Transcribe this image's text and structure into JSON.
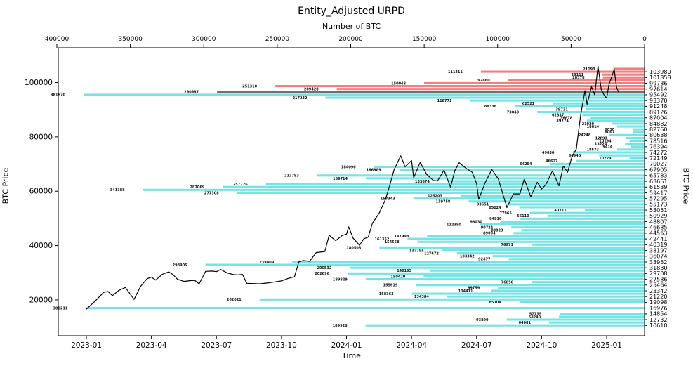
{
  "chart_data": {
    "type": "bar",
    "orientation": "horizontal",
    "title": "Entity_Adjusted URPD",
    "top_axis_label": "Number of BTC",
    "xlabel": "Time",
    "ylabel_left": "BTC Price",
    "ylabel_right": "BTC Price",
    "grid": false,
    "legend": "none",
    "colors": {
      "in_loss": "#f08080",
      "current": "#707070",
      "in_profit": "#76e4e4",
      "line": "#000000",
      "background": "#ffffff"
    },
    "top_axis": {
      "ticks": [
        400000,
        350000,
        300000,
        250000,
        200000,
        150000,
        100000,
        50000,
        0
      ],
      "max": 400000,
      "reversed": true
    },
    "left_axis": {
      "ticks": [
        20000,
        40000,
        60000,
        80000,
        100000
      ],
      "min": 6800,
      "max": 112800
    },
    "bottom_axis": {
      "tick_labels": [
        "2023-01",
        "2023-04",
        "2023-07",
        "2023-10",
        "2024-01",
        "2024-04",
        "2024-07",
        "2024-10",
        "2025-01"
      ],
      "tick_months": [
        0,
        3,
        6,
        9,
        12,
        15,
        18,
        21,
        24
      ]
    },
    "right_axis_tick_prices": [
      103980,
      101858,
      99736,
      97614,
      95492,
      93370,
      91248,
      89126,
      87004,
      84882,
      82760,
      80638,
      78516,
      76394,
      74272,
      72149,
      70027,
      67905,
      65783,
      63661,
      61539,
      59417,
      57295,
      55173,
      53051,
      50929,
      48807,
      46685,
      44563,
      42441,
      40319,
      38197,
      36074,
      33952,
      31830,
      29708,
      27586,
      25464,
      23342,
      21220,
      19098,
      16976,
      14854,
      12732,
      10610
    ],
    "bars": [
      {
        "price": 105041,
        "btc": 21193,
        "status": "in_loss"
      },
      {
        "price": 103980,
        "btc": 111411,
        "status": "in_loss"
      },
      {
        "price": 102919,
        "btc": 29111,
        "status": "in_loss"
      },
      {
        "price": 101858,
        "btc": 28378,
        "status": "in_loss"
      },
      {
        "price": 100797,
        "btc": 92860,
        "status": "in_loss"
      },
      {
        "price": 99736,
        "btc": 150048,
        "status": "in_loss"
      },
      {
        "price": 98675,
        "btc": 251310,
        "status": "in_loss"
      },
      {
        "price": 97614,
        "btc": 209428,
        "status": "in_loss"
      },
      {
        "price": 96553,
        "btc": 290987,
        "status": "current"
      },
      {
        "price": 95492,
        "btc": 381870,
        "status": "in_profit"
      },
      {
        "price": 94431,
        "btc": 217232,
        "status": "in_profit"
      },
      {
        "price": 93370,
        "btc": 118771,
        "status": "in_profit"
      },
      {
        "price": 92309,
        "btc": 62521,
        "status": "in_profit"
      },
      {
        "price": 91248,
        "btc": 88338,
        "status": "in_profit"
      },
      {
        "price": 90187,
        "btc": 39731,
        "status": "in_profit"
      },
      {
        "price": 89126,
        "btc": 73040,
        "status": "in_profit"
      },
      {
        "price": 88065,
        "btc": 42337,
        "status": "in_profit"
      },
      {
        "price": 87004,
        "btc": 36678,
        "status": "in_profit"
      },
      {
        "price": 85943,
        "btc": 39274,
        "status": "in_profit"
      },
      {
        "price": 84882,
        "btc": 21929,
        "status": "in_profit"
      },
      {
        "price": 83821,
        "btc": 18614,
        "status": "in_profit"
      },
      {
        "price": 82760,
        "btc": 8030,
        "status": "in_profit"
      },
      {
        "price": 81699,
        "btc": 8067,
        "status": "in_profit"
      },
      {
        "price": 80638,
        "btc": 24248,
        "status": "in_profit"
      },
      {
        "price": 79577,
        "btc": 12891,
        "status": "in_profit"
      },
      {
        "price": 78516,
        "btc": 10194,
        "status": "in_profit"
      },
      {
        "price": 77455,
        "btc": 13224,
        "status": "in_profit"
      },
      {
        "price": 76394,
        "btc": 9414,
        "status": "in_profit"
      },
      {
        "price": 75333,
        "btc": 18673,
        "status": "in_profit"
      },
      {
        "price": 74272,
        "btc": 49030,
        "status": "in_profit"
      },
      {
        "price": 73211,
        "btc": 30948,
        "status": "in_profit"
      },
      {
        "price": 72149,
        "btc": 10229,
        "status": "in_profit"
      },
      {
        "price": 71088,
        "btc": 46627,
        "status": "in_profit"
      },
      {
        "price": 70027,
        "btc": 64254,
        "status": "in_profit"
      },
      {
        "price": 68966,
        "btc": 184096,
        "status": "in_profit"
      },
      {
        "price": 67905,
        "btc": 166989,
        "status": "in_profit"
      },
      {
        "price": 65783,
        "btc": 222783,
        "status": "in_profit"
      },
      {
        "price": 64722,
        "btc": 189714,
        "status": "in_profit"
      },
      {
        "price": 63661,
        "btc": 133874,
        "status": "in_profit"
      },
      {
        "price": 62600,
        "btc": 257726,
        "status": "in_profit"
      },
      {
        "price": 61539,
        "btc": 287069,
        "status": "in_profit"
      },
      {
        "price": 60478,
        "btc": 341388,
        "status": "in_profit"
      },
      {
        "price": 59417,
        "btc": 277308,
        "status": "in_profit"
      },
      {
        "price": 58356,
        "btc": 125203,
        "status": "in_profit"
      },
      {
        "price": 57295,
        "btc": 157343,
        "status": "in_profit"
      },
      {
        "price": 56234,
        "btc": 119758,
        "status": "in_profit"
      },
      {
        "price": 55173,
        "btc": 93551,
        "status": "in_profit"
      },
      {
        "price": 54112,
        "btc": 85224,
        "status": "in_profit"
      },
      {
        "price": 53051,
        "btc": 40711,
        "status": "in_profit"
      },
      {
        "price": 51990,
        "btc": 77965,
        "status": "in_profit"
      },
      {
        "price": 50929,
        "btc": 66110,
        "status": "in_profit"
      },
      {
        "price": 49868,
        "btc": 84810,
        "status": "in_profit"
      },
      {
        "price": 48807,
        "btc": 98030,
        "status": "in_profit"
      },
      {
        "price": 47746,
        "btc": 112380,
        "status": "in_profit"
      },
      {
        "price": 46685,
        "btc": 90724,
        "status": "in_profit"
      },
      {
        "price": 45624,
        "btc": 83823,
        "status": "in_profit"
      },
      {
        "price": 44563,
        "btc": 89094,
        "status": "in_profit"
      },
      {
        "price": 43502,
        "btc": 147998,
        "status": "in_profit"
      },
      {
        "price": 42441,
        "btc": 161352,
        "status": "in_profit"
      },
      {
        "price": 41380,
        "btc": 154558,
        "status": "in_profit"
      },
      {
        "price": 40319,
        "btc": 76971,
        "status": "in_profit"
      },
      {
        "price": 39258,
        "btc": 180508,
        "status": "in_profit"
      },
      {
        "price": 38197,
        "btc": 137755,
        "status": "in_profit"
      },
      {
        "price": 37136,
        "btc": 127672,
        "status": "in_profit"
      },
      {
        "price": 36074,
        "btc": 103342,
        "status": "in_profit"
      },
      {
        "price": 35013,
        "btc": 92477,
        "status": "in_profit"
      },
      {
        "price": 33952,
        "btc": 239809,
        "status": "in_profit"
      },
      {
        "price": 32891,
        "btc": 298906,
        "status": "in_profit"
      },
      {
        "price": 31830,
        "btc": 200532,
        "status": "in_profit"
      },
      {
        "price": 30769,
        "btc": 146193,
        "status": "in_profit"
      },
      {
        "price": 29708,
        "btc": 202096,
        "status": "in_profit"
      },
      {
        "price": 28647,
        "btc": 150420,
        "status": "in_profit"
      },
      {
        "price": 27586,
        "btc": 189829,
        "status": "in_profit"
      },
      {
        "price": 26525,
        "btc": 76856,
        "status": "in_profit"
      },
      {
        "price": 25464,
        "btc": 155619,
        "status": "in_profit"
      },
      {
        "price": 24403,
        "btc": 99759,
        "status": "in_profit"
      },
      {
        "price": 23342,
        "btc": 104411,
        "status": "in_profit"
      },
      {
        "price": 22281,
        "btc": 158363,
        "status": "in_profit"
      },
      {
        "price": 21220,
        "btc": 134384,
        "status": "in_profit"
      },
      {
        "price": 20159,
        "btc": 262021,
        "status": "in_profit"
      },
      {
        "price": 19098,
        "btc": 85104,
        "status": "in_profit"
      },
      {
        "price": 16976,
        "btc": 380211,
        "status": "in_profit"
      },
      {
        "price": 14854,
        "btc": 57735,
        "status": "in_profit"
      },
      {
        "price": 13793,
        "btc": 58240,
        "status": "in_profit"
      },
      {
        "price": 12732,
        "btc": 93890,
        "status": "in_profit"
      },
      {
        "price": 11671,
        "btc": 64981,
        "status": "in_profit"
      },
      {
        "price": 10610,
        "btc": 189928,
        "status": "in_profit"
      }
    ],
    "overlay_line": {
      "name": "BTC price",
      "x_month_origin": "2023-01",
      "points": [
        [
          0,
          16600
        ],
        [
          0.4,
          19500
        ],
        [
          0.8,
          22800
        ],
        [
          1,
          23100
        ],
        [
          1.2,
          21600
        ],
        [
          1.5,
          23500
        ],
        [
          1.8,
          24600
        ],
        [
          2,
          22400
        ],
        [
          2.2,
          20200
        ],
        [
          2.5,
          25000
        ],
        [
          2.8,
          27800
        ],
        [
          3,
          28400
        ],
        [
          3.2,
          27300
        ],
        [
          3.5,
          29400
        ],
        [
          3.8,
          30300
        ],
        [
          4,
          29300
        ],
        [
          4.2,
          27600
        ],
        [
          4.5,
          26800
        ],
        [
          4.8,
          27100
        ],
        [
          5,
          27200
        ],
        [
          5.2,
          25900
        ],
        [
          5.5,
          30500
        ],
        [
          5.8,
          30600
        ],
        [
          6,
          30400
        ],
        [
          6.2,
          31200
        ],
        [
          6.5,
          29900
        ],
        [
          6.8,
          29300
        ],
        [
          7,
          29200
        ],
        [
          7.2,
          29400
        ],
        [
          7.4,
          26100
        ],
        [
          7.7,
          26000
        ],
        [
          8,
          25900
        ],
        [
          8.3,
          26200
        ],
        [
          8.6,
          26500
        ],
        [
          9,
          27000
        ],
        [
          9.3,
          27900
        ],
        [
          9.6,
          28500
        ],
        [
          9.8,
          34000
        ],
        [
          10,
          34500
        ],
        [
          10.3,
          34200
        ],
        [
          10.6,
          37400
        ],
        [
          11,
          37800
        ],
        [
          11.2,
          43800
        ],
        [
          11.5,
          41800
        ],
        [
          11.8,
          43700
        ],
        [
          12,
          44200
        ],
        [
          12.1,
          46900
        ],
        [
          12.3,
          42800
        ],
        [
          12.6,
          40100
        ],
        [
          12.8,
          42500
        ],
        [
          13,
          43100
        ],
        [
          13.2,
          48300
        ],
        [
          13.5,
          51800
        ],
        [
          13.8,
          57000
        ],
        [
          14,
          62400
        ],
        [
          14.2,
          68000
        ],
        [
          14.5,
          73000
        ],
        [
          14.7,
          69000
        ],
        [
          15,
          71300
        ],
        [
          15.1,
          65000
        ],
        [
          15.4,
          70600
        ],
        [
          15.7,
          66200
        ],
        [
          16,
          64000
        ],
        [
          16.2,
          63800
        ],
        [
          16.5,
          67800
        ],
        [
          16.8,
          61500
        ],
        [
          17,
          67700
        ],
        [
          17.2,
          70500
        ],
        [
          17.5,
          68500
        ],
        [
          17.8,
          67000
        ],
        [
          18,
          62800
        ],
        [
          18.1,
          57000
        ],
        [
          18.4,
          63200
        ],
        [
          18.7,
          68000
        ],
        [
          19,
          64600
        ],
        [
          19.2,
          59300
        ],
        [
          19.4,
          54000
        ],
        [
          19.7,
          59000
        ],
        [
          20,
          59000
        ],
        [
          20.2,
          64500
        ],
        [
          20.5,
          58000
        ],
        [
          20.8,
          63300
        ],
        [
          21,
          60800
        ],
        [
          21.2,
          62500
        ],
        [
          21.5,
          67500
        ],
        [
          21.8,
          62000
        ],
        [
          22,
          69300
        ],
        [
          22.2,
          67000
        ],
        [
          22.4,
          72700
        ],
        [
          22.6,
          75500
        ],
        [
          22.8,
          88000
        ],
        [
          23,
          97000
        ],
        [
          23.1,
          92000
        ],
        [
          23.3,
          98500
        ],
        [
          23.45,
          95500
        ],
        [
          23.6,
          106000
        ],
        [
          23.75,
          97500
        ],
        [
          23.9,
          95200
        ],
        [
          24,
          94300
        ],
        [
          24.1,
          99000
        ],
        [
          24.25,
          102500
        ],
        [
          24.35,
          104900
        ],
        [
          24.45,
          98500
        ],
        [
          24.55,
          96400
        ]
      ]
    }
  }
}
